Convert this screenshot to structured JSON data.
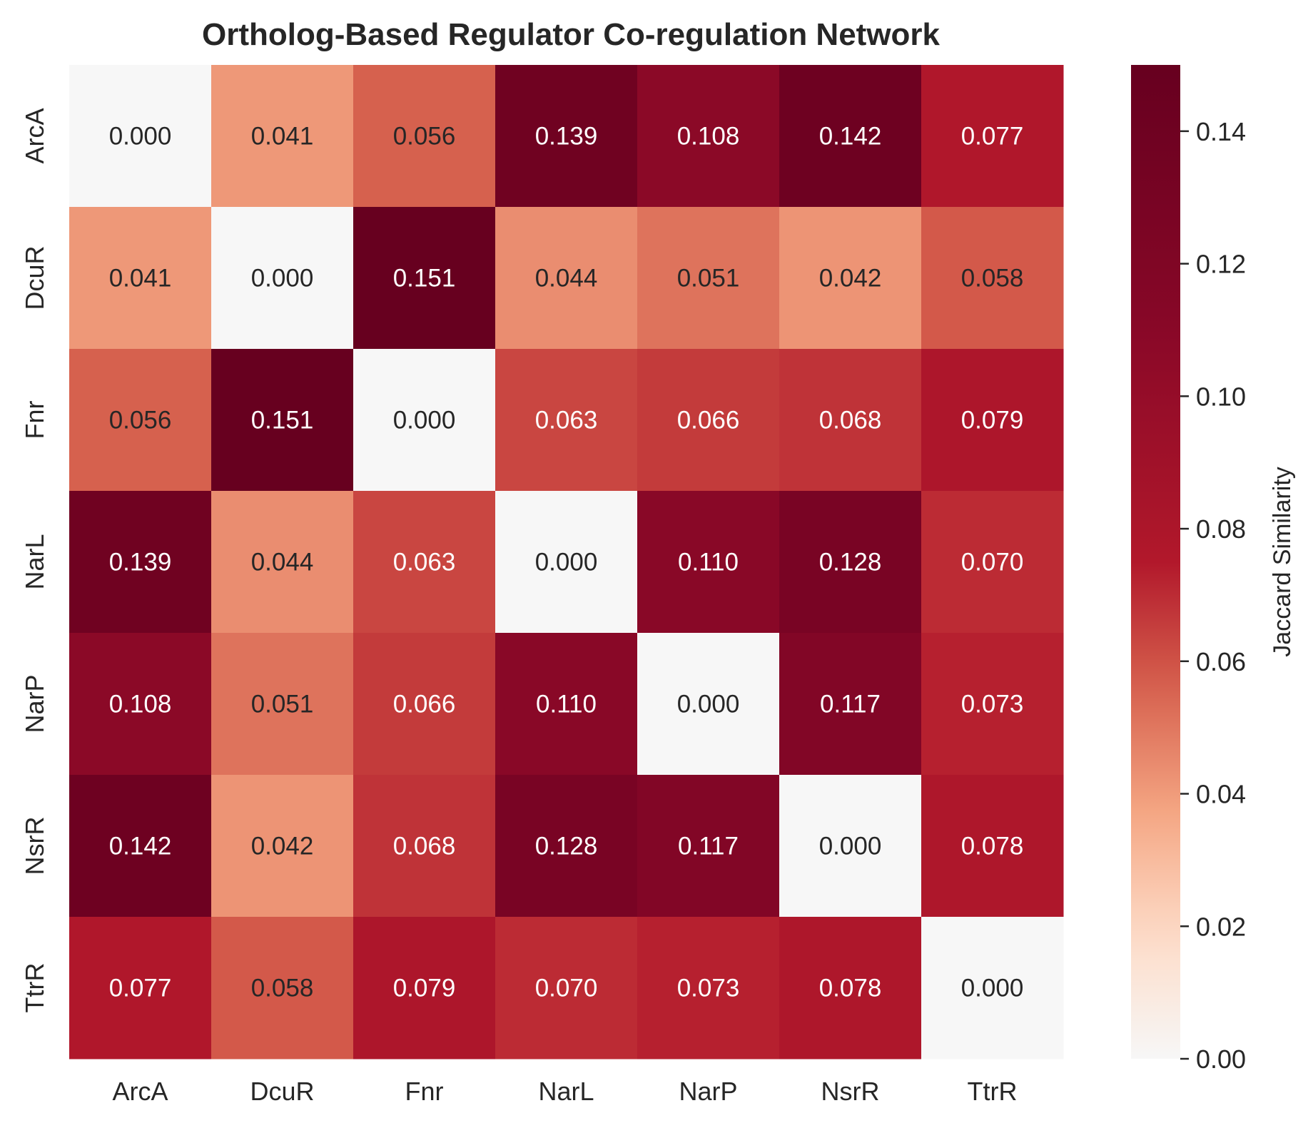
{
  "chart_data": {
    "type": "heatmap",
    "title": "Ortholog-Based Regulator Co-regulation Network",
    "xlabel": "",
    "ylabel": "",
    "x_categories": [
      "ArcA",
      "DcuR",
      "Fnr",
      "NarL",
      "NarP",
      "NsrR",
      "TtrR"
    ],
    "y_categories": [
      "ArcA",
      "DcuR",
      "Fnr",
      "NarL",
      "NarP",
      "NsrR",
      "TtrR"
    ],
    "values": [
      [
        0.0,
        0.041,
        0.056,
        0.139,
        0.108,
        0.142,
        0.077
      ],
      [
        0.041,
        0.0,
        0.151,
        0.044,
        0.051,
        0.042,
        0.058
      ],
      [
        0.056,
        0.151,
        0.0,
        0.063,
        0.066,
        0.068,
        0.079
      ],
      [
        0.139,
        0.044,
        0.063,
        0.0,
        0.11,
        0.128,
        0.07
      ],
      [
        0.108,
        0.051,
        0.066,
        0.11,
        0.0,
        0.117,
        0.073
      ],
      [
        0.142,
        0.042,
        0.068,
        0.128,
        0.117,
        0.0,
        0.078
      ],
      [
        0.077,
        0.058,
        0.079,
        0.07,
        0.073,
        0.078,
        0.0
      ]
    ],
    "value_format": "0.000",
    "colormap": "RdBu_r (upper half)",
    "colorbar": {
      "label": "Jaccard Similarity",
      "range": [
        0.0,
        0.15
      ],
      "ticks": [
        0.0,
        0.02,
        0.04,
        0.06,
        0.08,
        0.1,
        0.12,
        0.14
      ],
      "tick_labels": [
        "0.00",
        "0.02",
        "0.04",
        "0.06",
        "0.08",
        "0.10",
        "0.12",
        "0.14"
      ],
      "placement": "right"
    },
    "grid": false,
    "text_color_dark": "#262626",
    "text_color_light": "#ffffff"
  }
}
